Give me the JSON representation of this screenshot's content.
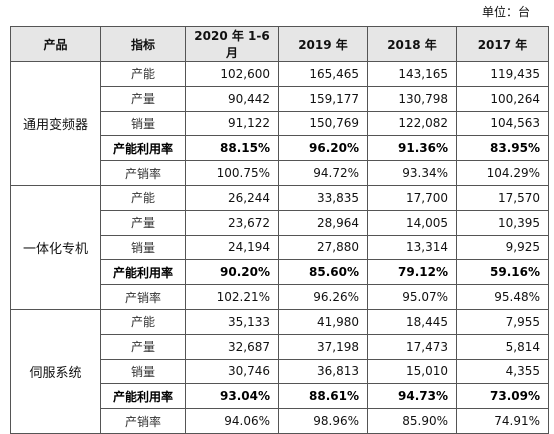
{
  "header": {
    "unit": "单位：台"
  },
  "table": {
    "columns": [
      "产品",
      "指标",
      "2020 年 1-6 月",
      "2019 年",
      "2018 年",
      "2017 年"
    ],
    "groups": [
      {
        "product": "通用变频器",
        "rows": [
          {
            "metric": "产能",
            "values": [
              "102,600",
              "165,465",
              "143,165",
              "119,435"
            ]
          },
          {
            "metric": "产量",
            "values": [
              "90,442",
              "159,177",
              "130,798",
              "100,264"
            ]
          },
          {
            "metric": "销量",
            "values": [
              "91,122",
              "150,769",
              "122,082",
              "104,563"
            ]
          },
          {
            "metric": "产能利用率",
            "bold": true,
            "values": [
              "88.15%",
              "96.20%",
              "91.36%",
              "83.95%"
            ]
          },
          {
            "metric": "产销率",
            "values": [
              "100.75%",
              "94.72%",
              "93.34%",
              "104.29%"
            ]
          }
        ]
      },
      {
        "product": "一体化专机",
        "rows": [
          {
            "metric": "产能",
            "values": [
              "26,244",
              "33,835",
              "17,700",
              "17,570"
            ]
          },
          {
            "metric": "产量",
            "values": [
              "23,672",
              "28,964",
              "14,005",
              "10,395"
            ]
          },
          {
            "metric": "销量",
            "values": [
              "24,194",
              "27,880",
              "13,314",
              "9,925"
            ]
          },
          {
            "metric": "产能利用率",
            "bold": true,
            "values": [
              "90.20%",
              "85.60%",
              "79.12%",
              "59.16%"
            ]
          },
          {
            "metric": "产销率",
            "values": [
              "102.21%",
              "96.26%",
              "95.07%",
              "95.48%"
            ]
          }
        ]
      },
      {
        "product": "伺服系统",
        "rows": [
          {
            "metric": "产能",
            "values": [
              "35,133",
              "41,980",
              "18,445",
              "7,955"
            ]
          },
          {
            "metric": "产量",
            "values": [
              "32,687",
              "37,198",
              "17,473",
              "5,814"
            ]
          },
          {
            "metric": "销量",
            "values": [
              "30,746",
              "36,813",
              "15,010",
              "4,355"
            ]
          },
          {
            "metric": "产能利用率",
            "bold": true,
            "values": [
              "93.04%",
              "88.61%",
              "94.73%",
              "73.09%"
            ]
          },
          {
            "metric": "产销率",
            "values": [
              "94.06%",
              "98.96%",
              "85.90%",
              "74.91%"
            ]
          }
        ]
      }
    ]
  }
}
